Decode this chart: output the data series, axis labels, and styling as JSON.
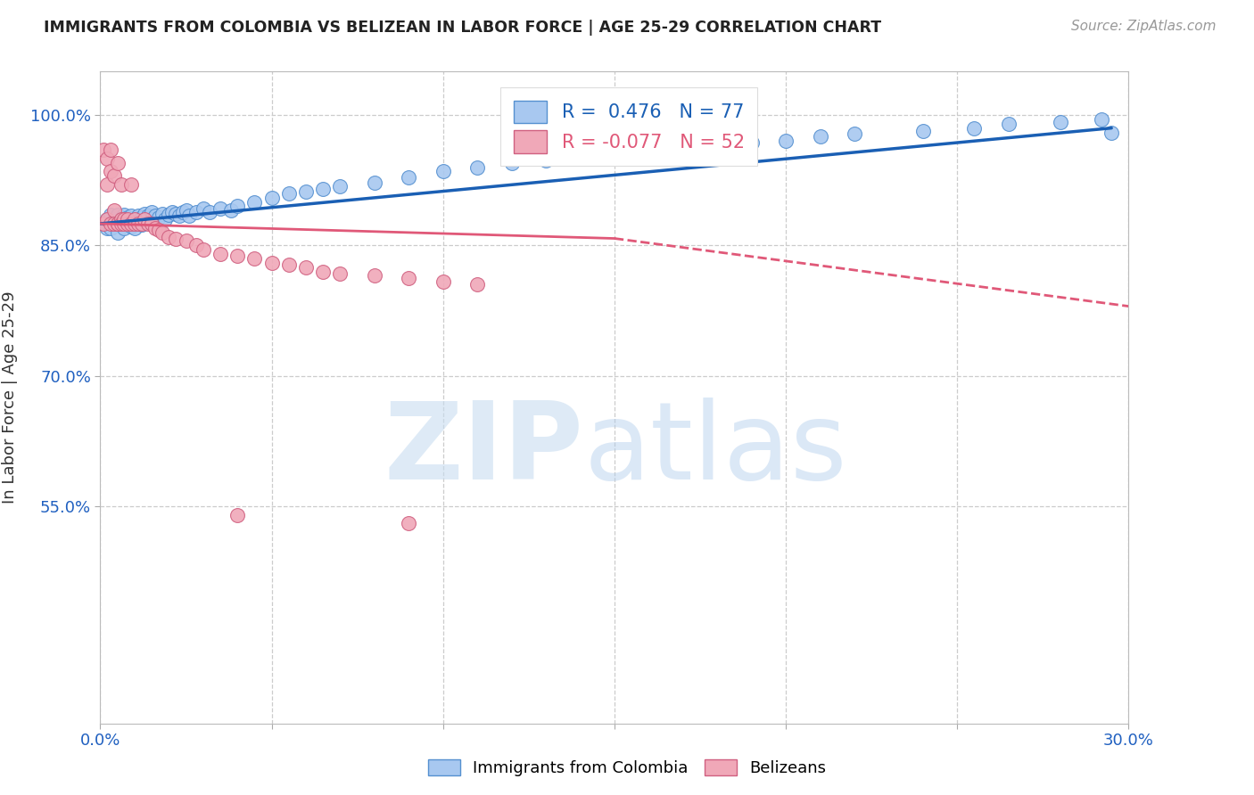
{
  "title": "IMMIGRANTS FROM COLOMBIA VS BELIZEAN IN LABOR FORCE | AGE 25-29 CORRELATION CHART",
  "source": "Source: ZipAtlas.com",
  "ylabel": "In Labor Force | Age 25-29",
  "xlim": [
    0.0,
    0.3
  ],
  "ylim": [
    0.3,
    1.05
  ],
  "xticks": [
    0.0,
    0.05,
    0.1,
    0.15,
    0.2,
    0.25,
    0.3
  ],
  "xticklabels": [
    "0.0%",
    "",
    "",
    "",
    "",
    "",
    "30.0%"
  ],
  "yticks": [
    0.55,
    0.7,
    0.85,
    1.0
  ],
  "yticklabels": [
    "55.0%",
    "70.0%",
    "85.0%",
    "100.0%"
  ],
  "colombia_R": 0.476,
  "colombia_N": 77,
  "belize_R": -0.077,
  "belize_N": 52,
  "colombia_color": "#a8c8f0",
  "belize_color": "#f0a8b8",
  "colombia_edge": "#5590d0",
  "belize_edge": "#d06080",
  "trend_colombia_color": "#1a5fb4",
  "trend_belize_color": "#e05878",
  "background_color": "#ffffff",
  "colombia_x": [
    0.001,
    0.002,
    0.002,
    0.003,
    0.003,
    0.003,
    0.004,
    0.004,
    0.005,
    0.005,
    0.005,
    0.006,
    0.006,
    0.007,
    0.007,
    0.007,
    0.008,
    0.008,
    0.009,
    0.009,
    0.01,
    0.01,
    0.01,
    0.011,
    0.011,
    0.012,
    0.012,
    0.013,
    0.013,
    0.014,
    0.014,
    0.015,
    0.015,
    0.016,
    0.017,
    0.018,
    0.019,
    0.02,
    0.021,
    0.022,
    0.023,
    0.024,
    0.025,
    0.026,
    0.028,
    0.03,
    0.032,
    0.035,
    0.038,
    0.04,
    0.045,
    0.05,
    0.055,
    0.06,
    0.065,
    0.07,
    0.08,
    0.09,
    0.1,
    0.11,
    0.12,
    0.13,
    0.14,
    0.15,
    0.16,
    0.17,
    0.18,
    0.19,
    0.2,
    0.21,
    0.22,
    0.24,
    0.255,
    0.265,
    0.28,
    0.292,
    0.295
  ],
  "colombia_y": [
    0.875,
    0.88,
    0.87,
    0.885,
    0.875,
    0.87,
    0.88,
    0.875,
    0.885,
    0.875,
    0.865,
    0.88,
    0.875,
    0.885,
    0.878,
    0.87,
    0.882,
    0.876,
    0.884,
    0.872,
    0.88,
    0.876,
    0.87,
    0.884,
    0.877,
    0.882,
    0.874,
    0.886,
    0.878,
    0.884,
    0.876,
    0.888,
    0.88,
    0.884,
    0.882,
    0.886,
    0.88,
    0.885,
    0.888,
    0.886,
    0.884,
    0.888,
    0.89,
    0.884,
    0.888,
    0.892,
    0.888,
    0.892,
    0.89,
    0.895,
    0.9,
    0.905,
    0.91,
    0.912,
    0.915,
    0.918,
    0.922,
    0.928,
    0.935,
    0.94,
    0.945,
    0.948,
    0.95,
    0.955,
    0.96,
    0.962,
    0.965,
    0.968,
    0.97,
    0.975,
    0.978,
    0.982,
    0.985,
    0.99,
    0.992,
    0.995,
    0.98
  ],
  "belize_x": [
    0.001,
    0.001,
    0.002,
    0.002,
    0.002,
    0.003,
    0.003,
    0.003,
    0.004,
    0.004,
    0.004,
    0.005,
    0.005,
    0.005,
    0.006,
    0.006,
    0.006,
    0.007,
    0.007,
    0.008,
    0.008,
    0.009,
    0.009,
    0.01,
    0.01,
    0.011,
    0.012,
    0.013,
    0.014,
    0.015,
    0.016,
    0.017,
    0.018,
    0.02,
    0.022,
    0.025,
    0.028,
    0.03,
    0.035,
    0.04,
    0.045,
    0.05,
    0.055,
    0.06,
    0.065,
    0.07,
    0.08,
    0.09,
    0.1,
    0.11,
    0.04,
    0.09
  ],
  "belize_y": [
    0.875,
    0.96,
    0.88,
    0.95,
    0.92,
    0.935,
    0.875,
    0.96,
    0.89,
    0.93,
    0.875,
    0.875,
    0.945,
    0.875,
    0.88,
    0.875,
    0.92,
    0.875,
    0.88,
    0.875,
    0.88,
    0.875,
    0.92,
    0.875,
    0.88,
    0.875,
    0.875,
    0.88,
    0.875,
    0.875,
    0.87,
    0.868,
    0.865,
    0.86,
    0.858,
    0.855,
    0.85,
    0.845,
    0.84,
    0.838,
    0.835,
    0.83,
    0.828,
    0.825,
    0.82,
    0.818,
    0.815,
    0.812,
    0.808,
    0.805,
    0.54,
    0.53
  ]
}
